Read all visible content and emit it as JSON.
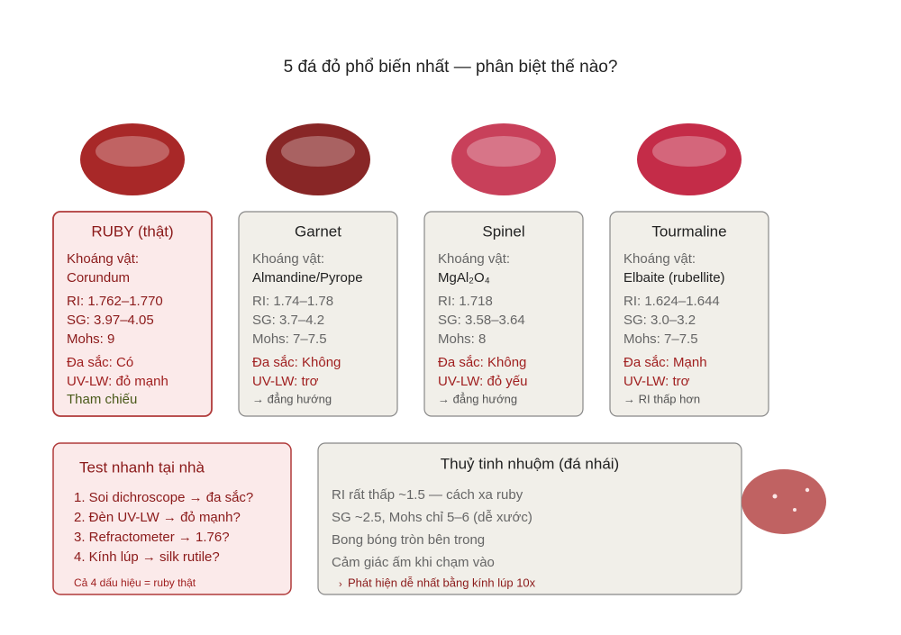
{
  "title": "5 đá đỏ phổ biến nhất — phân biệt thế nào?",
  "gems": [
    {
      "name": "RUBY (thật)",
      "color": "#a82828",
      "mineral_label": "Khoáng vật:",
      "mineral": "Corundum",
      "ri": "RI: 1.762–1.770",
      "sg": "SG: 3.97–4.05",
      "mohs": "Mohs: 9",
      "pleochroism": "Đa sắc: Có",
      "uv": "UV-LW: đỏ mạnh",
      "note": "Tham chiếu"
    },
    {
      "name": "Garnet",
      "color": "#882626",
      "mineral_label": "Khoáng vật:",
      "mineral": "Almandine/Pyrope",
      "ri": "RI: 1.74–1.78",
      "sg": "SG: 3.7–4.2",
      "mohs": "Mohs: 7–7.5",
      "pleochroism": "Đa sắc: Không",
      "uv": "UV-LW: trơ",
      "note": "→ đẳng hướng"
    },
    {
      "name": "Spinel",
      "color": "#c8405a",
      "mineral_label": "Khoáng vật:",
      "mineral": "MgAl₂O₄",
      "ri": "RI: 1.718",
      "sg": "SG: 3.58–3.64",
      "mohs": "Mohs: 8",
      "pleochroism": "Đa sắc: Không",
      "uv": "UV-LW: đỏ yếu",
      "note": "→ đẳng hướng"
    },
    {
      "name": "Tourmaline",
      "color": "#c42c48",
      "mineral_label": "Khoáng vật:",
      "mineral": "Elbaite (rubellite)",
      "ri": "RI: 1.624–1.644",
      "sg": "SG: 3.0–3.2",
      "mohs": "Mohs: 7–7.5",
      "pleochroism": "Đa sắc: Mạnh",
      "uv": "UV-LW: trơ",
      "note": "→ RI thấp hơn"
    }
  ],
  "quick_test": {
    "title": "Test nhanh tại nhà",
    "steps": [
      "1. Soi dichroscope → đa sắc?",
      "2. Đèn UV-LW → đỏ mạnh?",
      "3. Refractometer → 1.76?",
      "4. Kính lúp → silk rutile?"
    ],
    "footer": "Cả 4 dấu hiệu = ruby thật"
  },
  "glass": {
    "title": "Thuỷ tinh nhuộm (đá nhái)",
    "lines": [
      "RI rất thấp ~1.5 — cách xa ruby",
      "SG ~2.5, Mohs chỉ 5–6 (dễ xước)",
      "Bong bóng tròn bên trong",
      "Cảm giác ấm khi chạm vào"
    ],
    "tip": "Phát hiện dễ nhất bằng kính lúp 10x"
  }
}
